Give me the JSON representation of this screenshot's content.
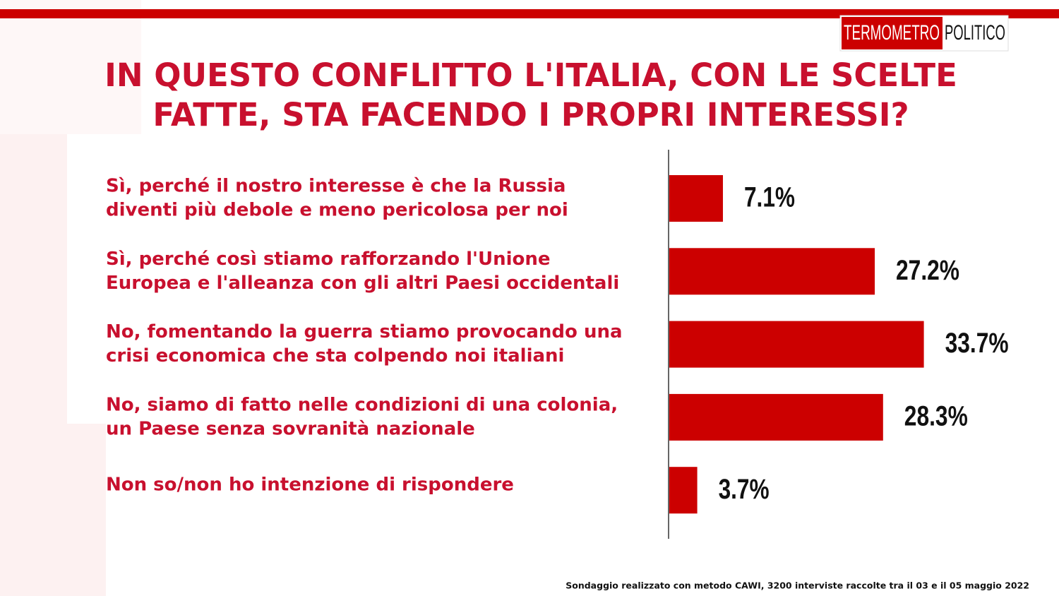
{
  "chart_data": {
    "type": "bar",
    "orientation": "horizontal",
    "brand": [
      "TERMOMETRO",
      "POLITICO"
    ],
    "title": [
      "IN QUESTO CONFLITTO L'ITALIA, CON LE SCELTE",
      "FATTE, STA FACENDO I PROPRI INTERESSI?"
    ],
    "categories": [
      [
        "Sì, perché il nostro interesse è che la Russia",
        "diventi più debole e meno pericolosa per noi"
      ],
      [
        "Sì, perché così stiamo rafforzando l'Unione",
        "Europea e l'alleanza con gli altri Paesi occidentali"
      ],
      [
        "No, fomentando la guerra stiamo provocando una",
        "crisi economica che sta colpendo noi italiani"
      ],
      [
        "No, siamo di fatto nelle condizioni di una colonia,",
        "un Paese senza sovranità  nazionale"
      ],
      [
        "Non so/non ho intenzione di rispondere"
      ]
    ],
    "values": [
      7.1,
      27.2,
      33.7,
      28.3,
      3.7
    ],
    "value_labels": [
      "7.1%",
      "27.2%",
      "33.7%",
      "28.3%",
      "3.7%"
    ],
    "color": "#cc0000",
    "note": "Sondaggio realizzato con metodo CAWI, 3200 interviste raccolte tra il 03 e il 05 maggio 2022"
  }
}
